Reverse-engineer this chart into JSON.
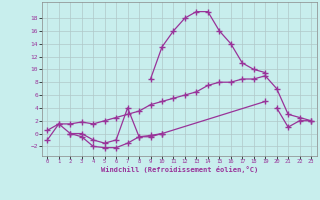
{
  "xlabel": "Windchill (Refroidissement éolien,°C)",
  "background_color": "#c8eeed",
  "grid_color": "#b0c8c8",
  "line_color": "#993399",
  "xlim": [
    -0.5,
    23.5
  ],
  "ylim": [
    -3.5,
    20.5
  ],
  "xticks": [
    0,
    1,
    2,
    3,
    4,
    5,
    6,
    7,
    8,
    9,
    10,
    11,
    12,
    13,
    14,
    15,
    16,
    17,
    18,
    19,
    20,
    21,
    22,
    23
  ],
  "yticks": [
    -2,
    0,
    2,
    4,
    6,
    8,
    10,
    12,
    14,
    16,
    18
  ],
  "line1_x": [
    0,
    1,
    2,
    3,
    4,
    5,
    6,
    7,
    8,
    9,
    10
  ],
  "line1_y": [
    -1.0,
    1.5,
    0.0,
    -0.5,
    -2.0,
    -2.2,
    -2.2,
    -1.5,
    -0.5,
    -0.3,
    0.0
  ],
  "line2_x": [
    2,
    3,
    4,
    5,
    6,
    7,
    8,
    9,
    10,
    19,
    20,
    21,
    22,
    23
  ],
  "line2_y": [
    0.0,
    0.0,
    -1.0,
    -1.5,
    -1.0,
    4.0,
    -0.5,
    -0.5,
    0.0,
    5.0,
    4.0,
    1.0,
    2.0,
    2.0
  ],
  "line3_x": [
    9,
    10,
    11,
    12,
    13,
    14,
    15,
    16,
    17,
    18,
    19
  ],
  "line3_y": [
    8.5,
    13.5,
    16.0,
    18.0,
    19.0,
    19.0,
    16.0,
    14.0,
    11.0,
    10.0,
    9.5
  ],
  "line4_x": [
    0,
    1,
    2,
    3,
    4,
    5,
    6,
    7,
    8,
    9,
    10,
    11,
    12,
    13,
    14,
    15,
    16,
    17,
    18,
    19,
    20,
    21,
    22,
    23
  ],
  "line4_y": [
    0.5,
    1.5,
    1.5,
    1.8,
    1.5,
    2.0,
    2.5,
    3.0,
    3.5,
    4.5,
    5.0,
    5.5,
    6.0,
    6.5,
    7.5,
    8.0,
    8.0,
    8.5,
    8.5,
    9.0,
    7.0,
    3.0,
    2.5,
    2.0
  ]
}
